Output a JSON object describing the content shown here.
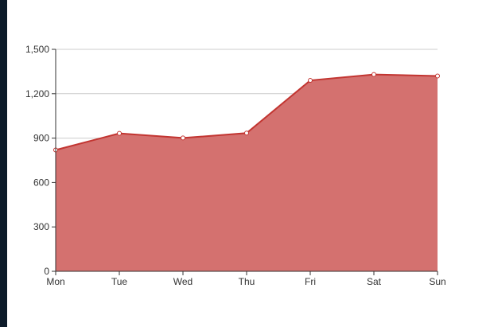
{
  "chart_data": {
    "type": "area",
    "categories": [
      "Mon",
      "Tue",
      "Wed",
      "Thu",
      "Fri",
      "Sat",
      "Sun"
    ],
    "series": [
      {
        "values": [
          820,
          932,
          901,
          934,
          1290,
          1330,
          1320
        ]
      }
    ],
    "yticks": [
      "0",
      "300",
      "600",
      "900",
      "1,200",
      "1,500"
    ],
    "ylim": [
      0,
      1500
    ],
    "grid": true,
    "colors": {
      "fill": "#d4716f",
      "line": "#c23531",
      "grid": "#cccccc",
      "axis": "#333333"
    }
  }
}
